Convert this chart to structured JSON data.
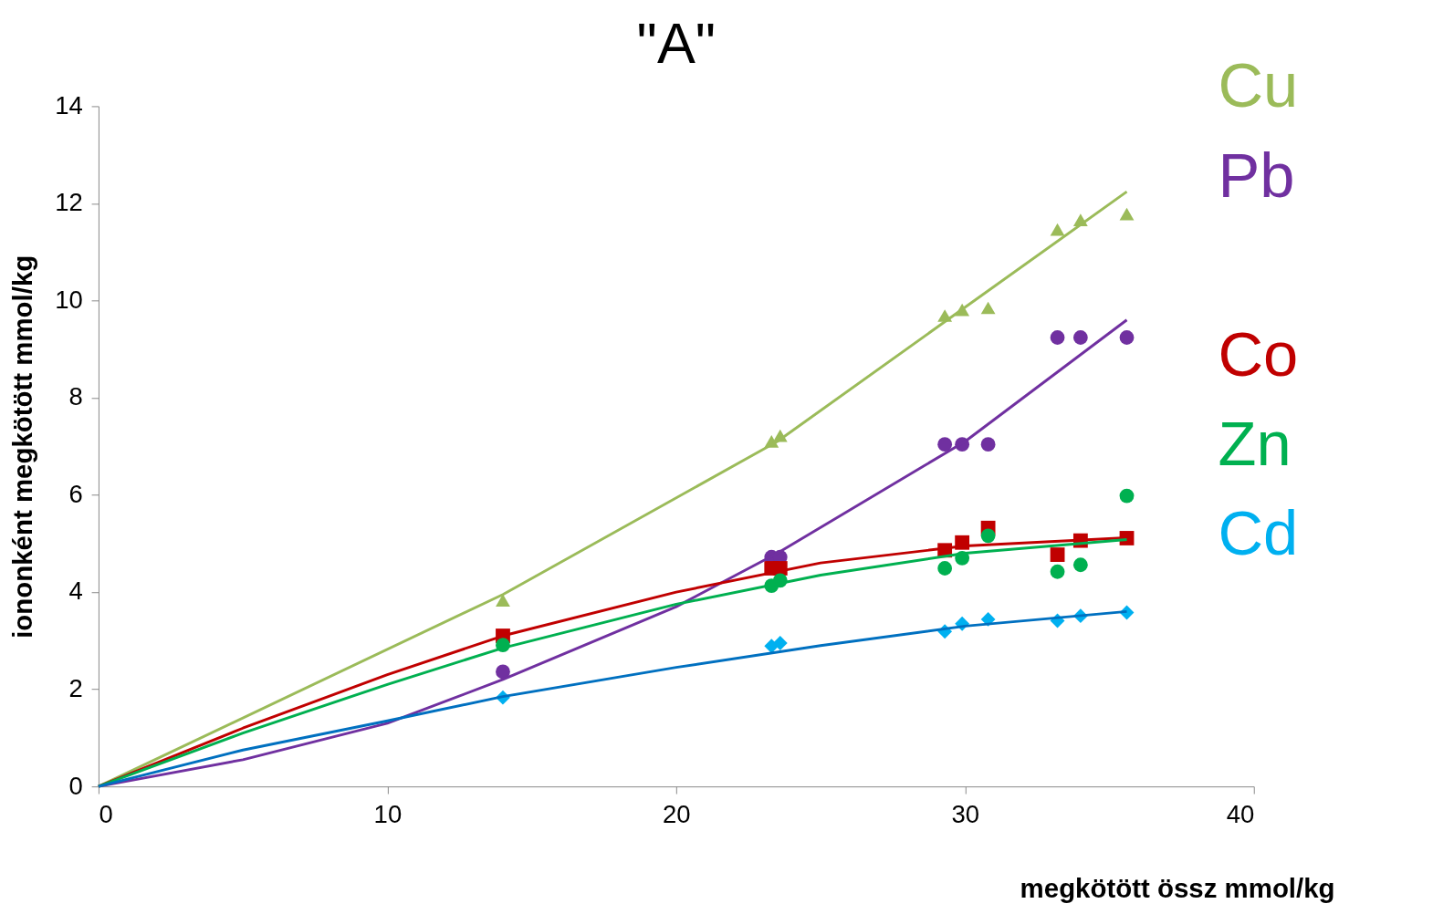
{
  "chart_data": {
    "type": "scatter",
    "title": "\"A\"",
    "xlabel": "megkötött   össz mmol/kg",
    "ylabel": "iononként megkötött mmol/kg",
    "xlim": [
      0,
      40
    ],
    "xticks": [
      0,
      10,
      20,
      30,
      40
    ],
    "ylim": [
      0,
      14
    ],
    "yticks": [
      0,
      2,
      4,
      6,
      8,
      10,
      12,
      14
    ],
    "grid": false,
    "x": [
      14,
      23.3,
      23.6,
      29.3,
      29.9,
      30.8,
      33.2,
      34,
      35.6
    ],
    "series": [
      {
        "name": "Cu",
        "color": "#9bbb59",
        "marker": "triangle",
        "values": [
          3.83,
          7.1,
          7.22,
          9.69,
          9.81,
          9.85,
          11.46,
          11.66,
          11.78
        ]
      },
      {
        "name": "Pb",
        "color": "#7030a0",
        "marker": "circle",
        "values": [
          2.36,
          4.72,
          4.72,
          7.04,
          7.04,
          7.04,
          9.24,
          9.24,
          9.24
        ]
      },
      {
        "name": "Co",
        "color": "#c00000",
        "marker": "square",
        "values": [
          3.1,
          4.49,
          4.49,
          4.86,
          5.02,
          5.32,
          4.77,
          5.06,
          5.11
        ]
      },
      {
        "name": "Zn",
        "color": "#00b050",
        "marker": "circle",
        "values": [
          2.91,
          4.13,
          4.24,
          4.49,
          4.7,
          5.16,
          4.42,
          4.56,
          5.98
        ]
      },
      {
        "name": "Cd",
        "color": "#00b0f0",
        "marker": "diamond",
        "values": [
          1.83,
          2.89,
          2.95,
          3.19,
          3.35,
          3.44,
          3.41,
          3.51,
          3.58
        ]
      },
      {
        "type": "line",
        "color": "#9bbb59",
        "marker": "none",
        "x": [
          0,
          14,
          23.5,
          35.6
        ],
        "values": [
          0,
          3.95,
          7.1,
          12.24
        ]
      },
      {
        "type": "line",
        "color": "#7030a0",
        "marker": "none",
        "x": [
          0,
          5,
          10,
          14,
          20,
          23.5,
          30,
          35.6
        ],
        "values": [
          0,
          0.55,
          1.3,
          2.2,
          3.7,
          4.8,
          7.1,
          9.6
        ]
      },
      {
        "type": "line",
        "color": "#c00000",
        "marker": "none",
        "x": [
          0,
          5,
          10,
          14,
          20,
          25,
          30,
          35.6
        ],
        "values": [
          0,
          1.2,
          2.3,
          3.1,
          4.0,
          4.6,
          4.95,
          5.12
        ]
      },
      {
        "type": "line",
        "color": "#00b050",
        "marker": "none",
        "x": [
          0,
          5,
          10,
          14,
          20,
          25,
          30,
          35.6
        ],
        "values": [
          0,
          1.1,
          2.1,
          2.85,
          3.75,
          4.35,
          4.8,
          5.08
        ]
      },
      {
        "type": "line",
        "color": "#0070c0",
        "marker": "none",
        "x": [
          0,
          5,
          10,
          14,
          20,
          25,
          30,
          35.6
        ],
        "values": [
          0,
          0.75,
          1.35,
          1.85,
          2.45,
          2.9,
          3.3,
          3.6
        ]
      }
    ]
  }
}
